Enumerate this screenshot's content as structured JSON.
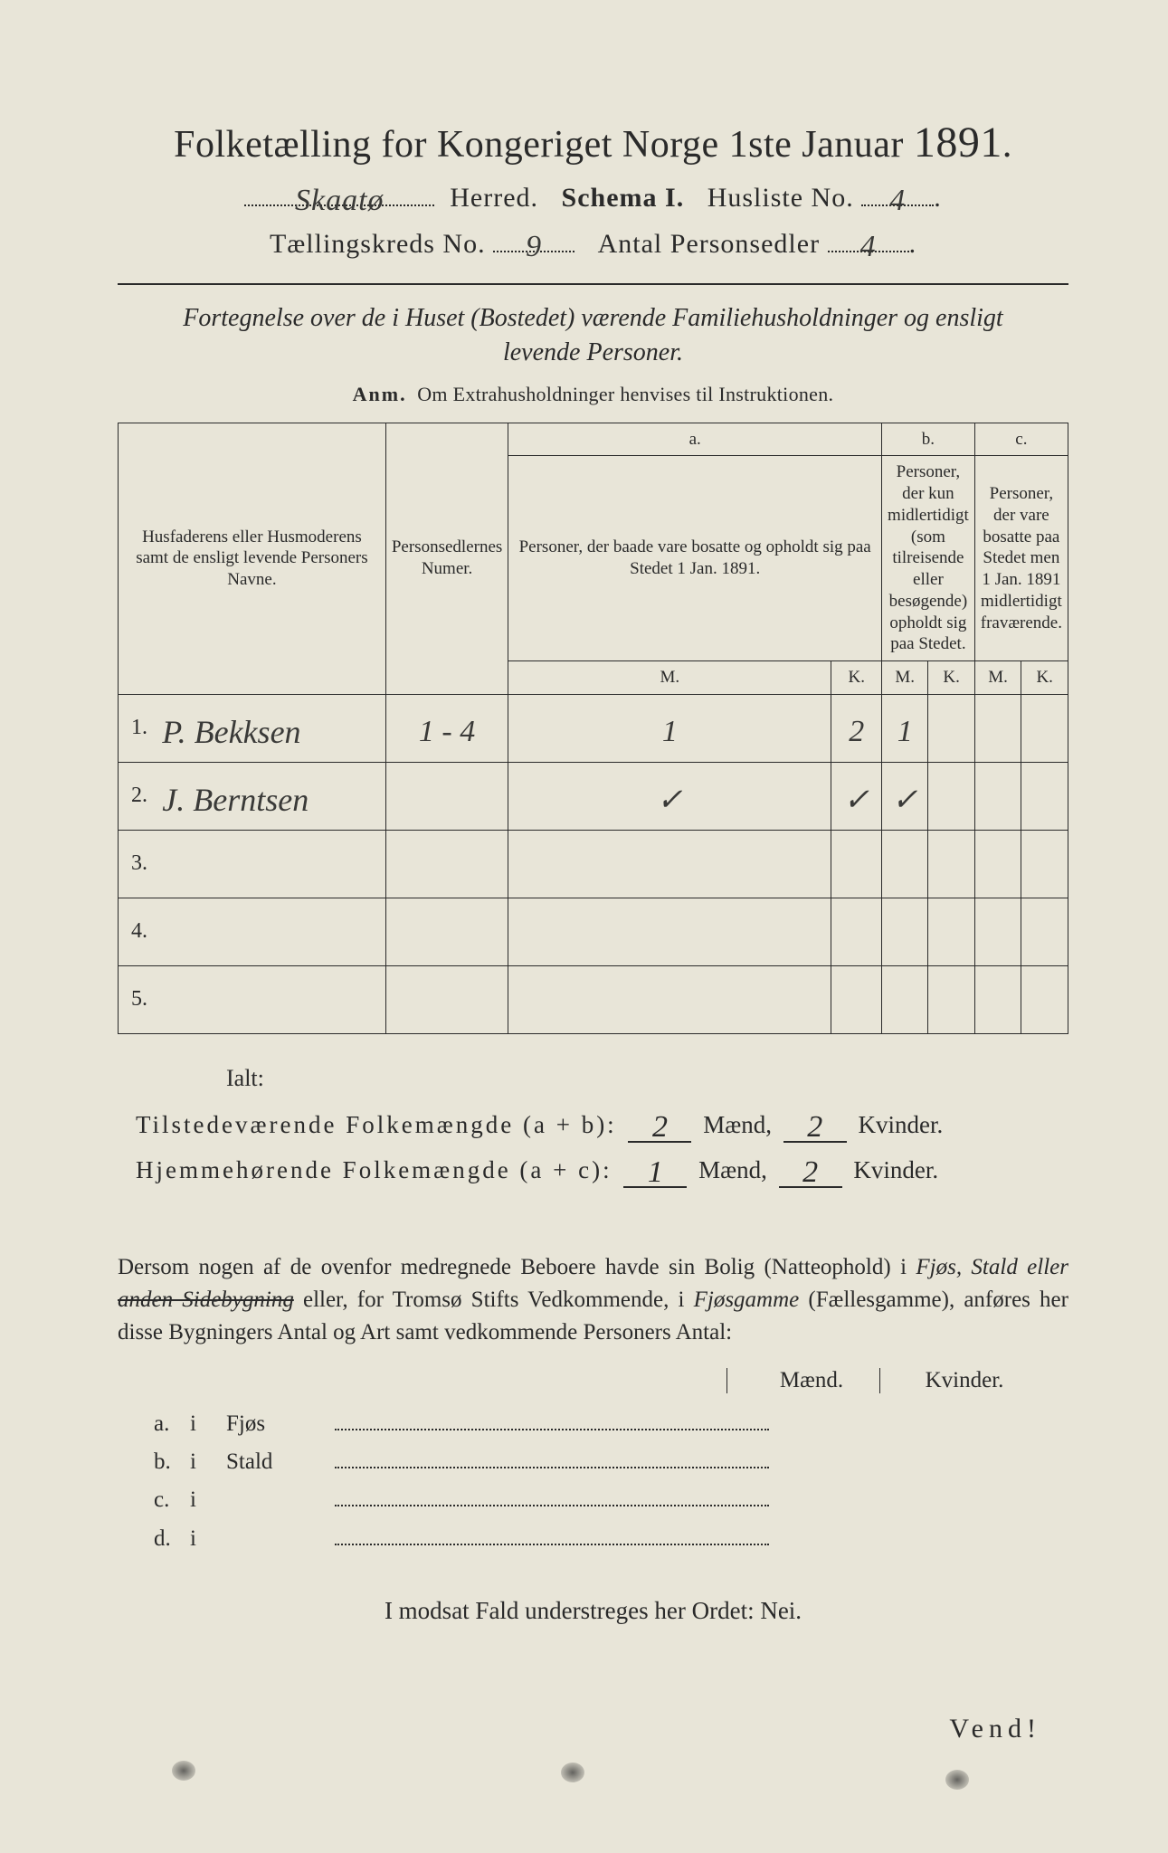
{
  "colors": {
    "paper": "#e8e5d8",
    "ink": "#2a2a2a",
    "background": "#3a3a3a",
    "handwriting": "#3a3a38"
  },
  "typography": {
    "printed_family": "Times New Roman / serif",
    "handwritten_family": "cursive script",
    "title_size_pt": 42,
    "body_size_pt": 25,
    "table_header_size_pt": 19
  },
  "header": {
    "title_prefix": "Folketælling for Kongeriget Norge 1ste Januar",
    "year": "1891",
    "title_suffix": ".",
    "herred_value": "Skaatø",
    "herred_label": "Herred.",
    "schema_label": "Schema I.",
    "husliste_label": "Husliste No.",
    "husliste_value": "4",
    "kreds_label": "Tællingskreds No.",
    "kreds_value": "9",
    "antal_label": "Antal Personsedler",
    "antal_value": "4"
  },
  "section_subtitle": {
    "line": "Fortegnelse over de i Huset (Bostedet) værende Familiehusholdninger og ensligt levende Personer."
  },
  "anm": {
    "label": "Anm.",
    "text": "Om Extrahusholdninger henvises til Instruktionen."
  },
  "table": {
    "col_name_header": "Husfaderens eller Husmoderens samt de ensligt levende Personers Navne.",
    "col_num_header": "Personsedlernes Numer.",
    "col_a_label": "a.",
    "col_a_text": "Personer, der baade vare bosatte og opholdt sig paa Stedet 1 Jan. 1891.",
    "col_b_label": "b.",
    "col_b_text": "Personer, der kun midlertidigt (som tilreisende eller besøgende) opholdt sig paa Stedet.",
    "col_c_label": "c.",
    "col_c_text": "Personer, der vare bosatte paa Stedet men 1 Jan. 1891 midlertidigt fraværende.",
    "m": "M.",
    "k": "K.",
    "rows": [
      {
        "num": "1.",
        "name": "P. Bekksen",
        "pers": "1 - 4",
        "aM": "1",
        "aK": "2",
        "bM": "1",
        "bK": "",
        "cM": "",
        "cK": ""
      },
      {
        "num": "2.",
        "name": "J. Berntsen",
        "pers": "",
        "aM": "✓",
        "aK": "✓",
        "bM": "✓",
        "bK": "",
        "cM": "",
        "cK": ""
      },
      {
        "num": "3.",
        "name": "",
        "pers": "",
        "aM": "",
        "aK": "",
        "bM": "",
        "bK": "",
        "cM": "",
        "cK": ""
      },
      {
        "num": "4.",
        "name": "",
        "pers": "",
        "aM": "",
        "aK": "",
        "bM": "",
        "bK": "",
        "cM": "",
        "cK": ""
      },
      {
        "num": "5.",
        "name": "",
        "pers": "",
        "aM": "",
        "aK": "",
        "bM": "",
        "bK": "",
        "cM": "",
        "cK": ""
      }
    ]
  },
  "totals": {
    "ialt": "Ialt:",
    "line1_label": "Tilstedeværende Folkemængde (a + b):",
    "line2_label": "Hjemmehørende Folkemængde (a + c):",
    "maend": "Mænd,",
    "kvinder": "Kvinder.",
    "ab_m": "2",
    "ab_k": "2",
    "ac_m": "1",
    "ac_k": "2"
  },
  "paragraph": {
    "text_parts": {
      "p1": "Dersom nogen af de ovenfor medregnede Beboere havde sin Bolig (Natteophold) i ",
      "it1": "Fjøs, Stald eller ",
      "strike": "anden Sidebygning",
      "p2": " eller, for Tromsø Stifts Vedkommende, i ",
      "it2": "Fjøsgamme",
      "p3": " (Fællesgamme), anføres her disse Bygningers Antal og Art samt vedkommende Personers Antal:"
    }
  },
  "mk_head": {
    "m": "Mænd.",
    "k": "Kvinder."
  },
  "abcd": {
    "rows": [
      {
        "key": "a.",
        "i": "i",
        "label": "Fjøs"
      },
      {
        "key": "b.",
        "i": "i",
        "label": "Stald"
      },
      {
        "key": "c.",
        "i": "i",
        "label": ""
      },
      {
        "key": "d.",
        "i": "i",
        "label": ""
      }
    ]
  },
  "nei": {
    "text_prefix": "I modsat Fald understreges her Ordet: ",
    "word": "Nei."
  },
  "vend": "Vend!"
}
